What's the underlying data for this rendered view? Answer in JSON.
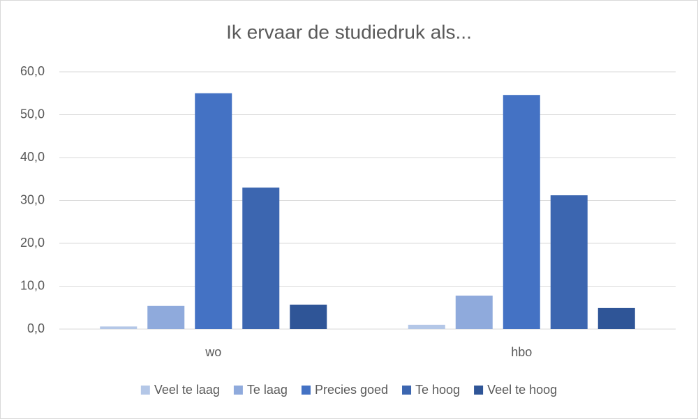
{
  "chart_data": {
    "type": "bar",
    "title": "Ik ervaar de studiedruk als...",
    "categories": [
      "wo",
      "hbo"
    ],
    "series": [
      {
        "name": "Veel te laag",
        "color": "#b4c7e7",
        "values": [
          0.6,
          1.0
        ]
      },
      {
        "name": "Te laag",
        "color": "#8faadc",
        "values": [
          5.4,
          7.8
        ]
      },
      {
        "name": "Precies goed",
        "color": "#4472c4",
        "values": [
          55.0,
          54.6
        ]
      },
      {
        "name": "Te hoog",
        "color": "#3c66b0",
        "values": [
          33.0,
          31.2
        ]
      },
      {
        "name": "Veel te hoog",
        "color": "#2f5597",
        "values": [
          5.7,
          4.9
        ]
      }
    ],
    "ylim": [
      0,
      60
    ],
    "yticks": [
      {
        "value": 0,
        "label": "0,0"
      },
      {
        "value": 10,
        "label": "10,0"
      },
      {
        "value": 20,
        "label": "20,0"
      },
      {
        "value": 30,
        "label": "30,0"
      },
      {
        "value": 40,
        "label": "40,0"
      },
      {
        "value": 50,
        "label": "50,0"
      },
      {
        "value": 60,
        "label": "60,0"
      }
    ],
    "grid": true,
    "legend": "bottom"
  }
}
